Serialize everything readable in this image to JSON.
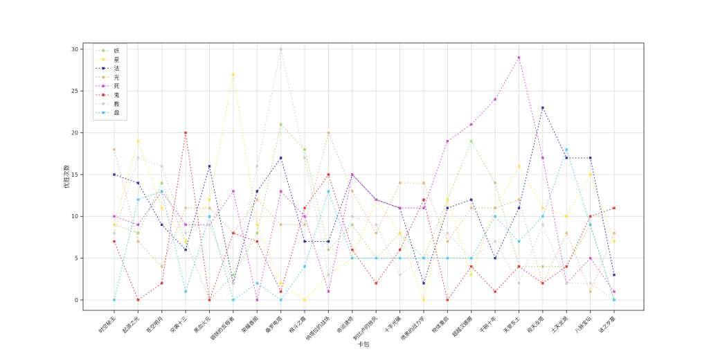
{
  "figure_title": "",
  "chart_data": {
    "type": "line",
    "title": "",
    "xlabel": "卡包",
    "ylabel": "优胜次数",
    "ylim": [
      0,
      30
    ],
    "yticks": [
      0,
      5,
      10,
      15,
      20,
      25,
      30
    ],
    "grid": true,
    "grid_color": "#dcdcdc",
    "frame_color": "#444444",
    "tick_label_color": "#333333",
    "line_style": "dotted",
    "marker": "square",
    "legend_position": "upper left",
    "categories": [
      "时空秘玉",
      "起源之光",
      "苍空明月",
      "突袭十三",
      "黑血火元",
      "钢铁的反叛者",
      "荣耀香阁",
      "桑罗电塔",
      "棋斗之趣",
      "纳塔拉的战场",
      "命运速修",
      "刺比卢的放风",
      "十字光碾",
      "喷黑的战力学",
      "物体重启",
      "超越汉娜娜",
      "干碗十年",
      "天堂东土",
      "视天龙塔",
      "土天龙湖",
      "八脉宝坛",
      "谜之岁墓"
    ],
    "series": [
      {
        "name": "妖",
        "color": "#a3d977",
        "values": [
          9,
          8,
          14,
          7,
          0,
          3,
          8,
          21,
          18,
          6,
          9,
          5,
          8,
          5,
          12,
          19,
          14,
          4,
          4,
          4,
          9,
          0
        ]
      },
      {
        "name": "星",
        "color": "#ffe14d",
        "values": [
          9,
          19,
          11,
          7,
          12,
          27,
          9,
          2,
          0,
          3,
          5,
          12,
          8,
          0,
          12,
          3,
          11,
          16,
          11,
          10,
          15,
          7
        ]
      },
      {
        "name": "法",
        "color": "#3535a8",
        "values": [
          15,
          14,
          9,
          6,
          16,
          2,
          13,
          17,
          7,
          7,
          15,
          12,
          11,
          2,
          11,
          12,
          5,
          11,
          23,
          17,
          17,
          3
        ]
      },
      {
        "name": "光",
        "color": "#dfba85",
        "values": [
          18,
          7,
          4,
          11,
          11,
          8,
          12,
          9,
          9,
          20,
          13,
          8,
          14,
          14,
          7,
          11,
          11,
          12,
          2,
          8,
          1,
          8
        ]
      },
      {
        "name": "死",
        "color": "#d052d0",
        "values": [
          10,
          9,
          13,
          9,
          9,
          13,
          0,
          13,
          10,
          1,
          15,
          12,
          11,
          11,
          19,
          21,
          24,
          29,
          17,
          2,
          5,
          1
        ]
      },
      {
        "name": "鬼",
        "color": "#e03c3c",
        "values": [
          7,
          0,
          2,
          20,
          0,
          8,
          7,
          1,
          11,
          15,
          6,
          2,
          6,
          12,
          0,
          4,
          1,
          4,
          2,
          4,
          10,
          11
        ]
      },
      {
        "name": "教",
        "color": "#cfcfcf",
        "values": [
          8,
          17,
          16,
          8,
          9,
          2,
          16,
          30,
          17,
          3,
          10,
          9,
          3,
          5,
          8,
          5,
          7,
          2,
          9,
          2,
          2,
          0
        ]
      },
      {
        "name": "盘",
        "color": "#55c8e8",
        "values": [
          0,
          12,
          13,
          1,
          10,
          0,
          2,
          0,
          4,
          13,
          5,
          5,
          5,
          5,
          5,
          5,
          10,
          7,
          10,
          18,
          9,
          0
        ]
      }
    ]
  }
}
